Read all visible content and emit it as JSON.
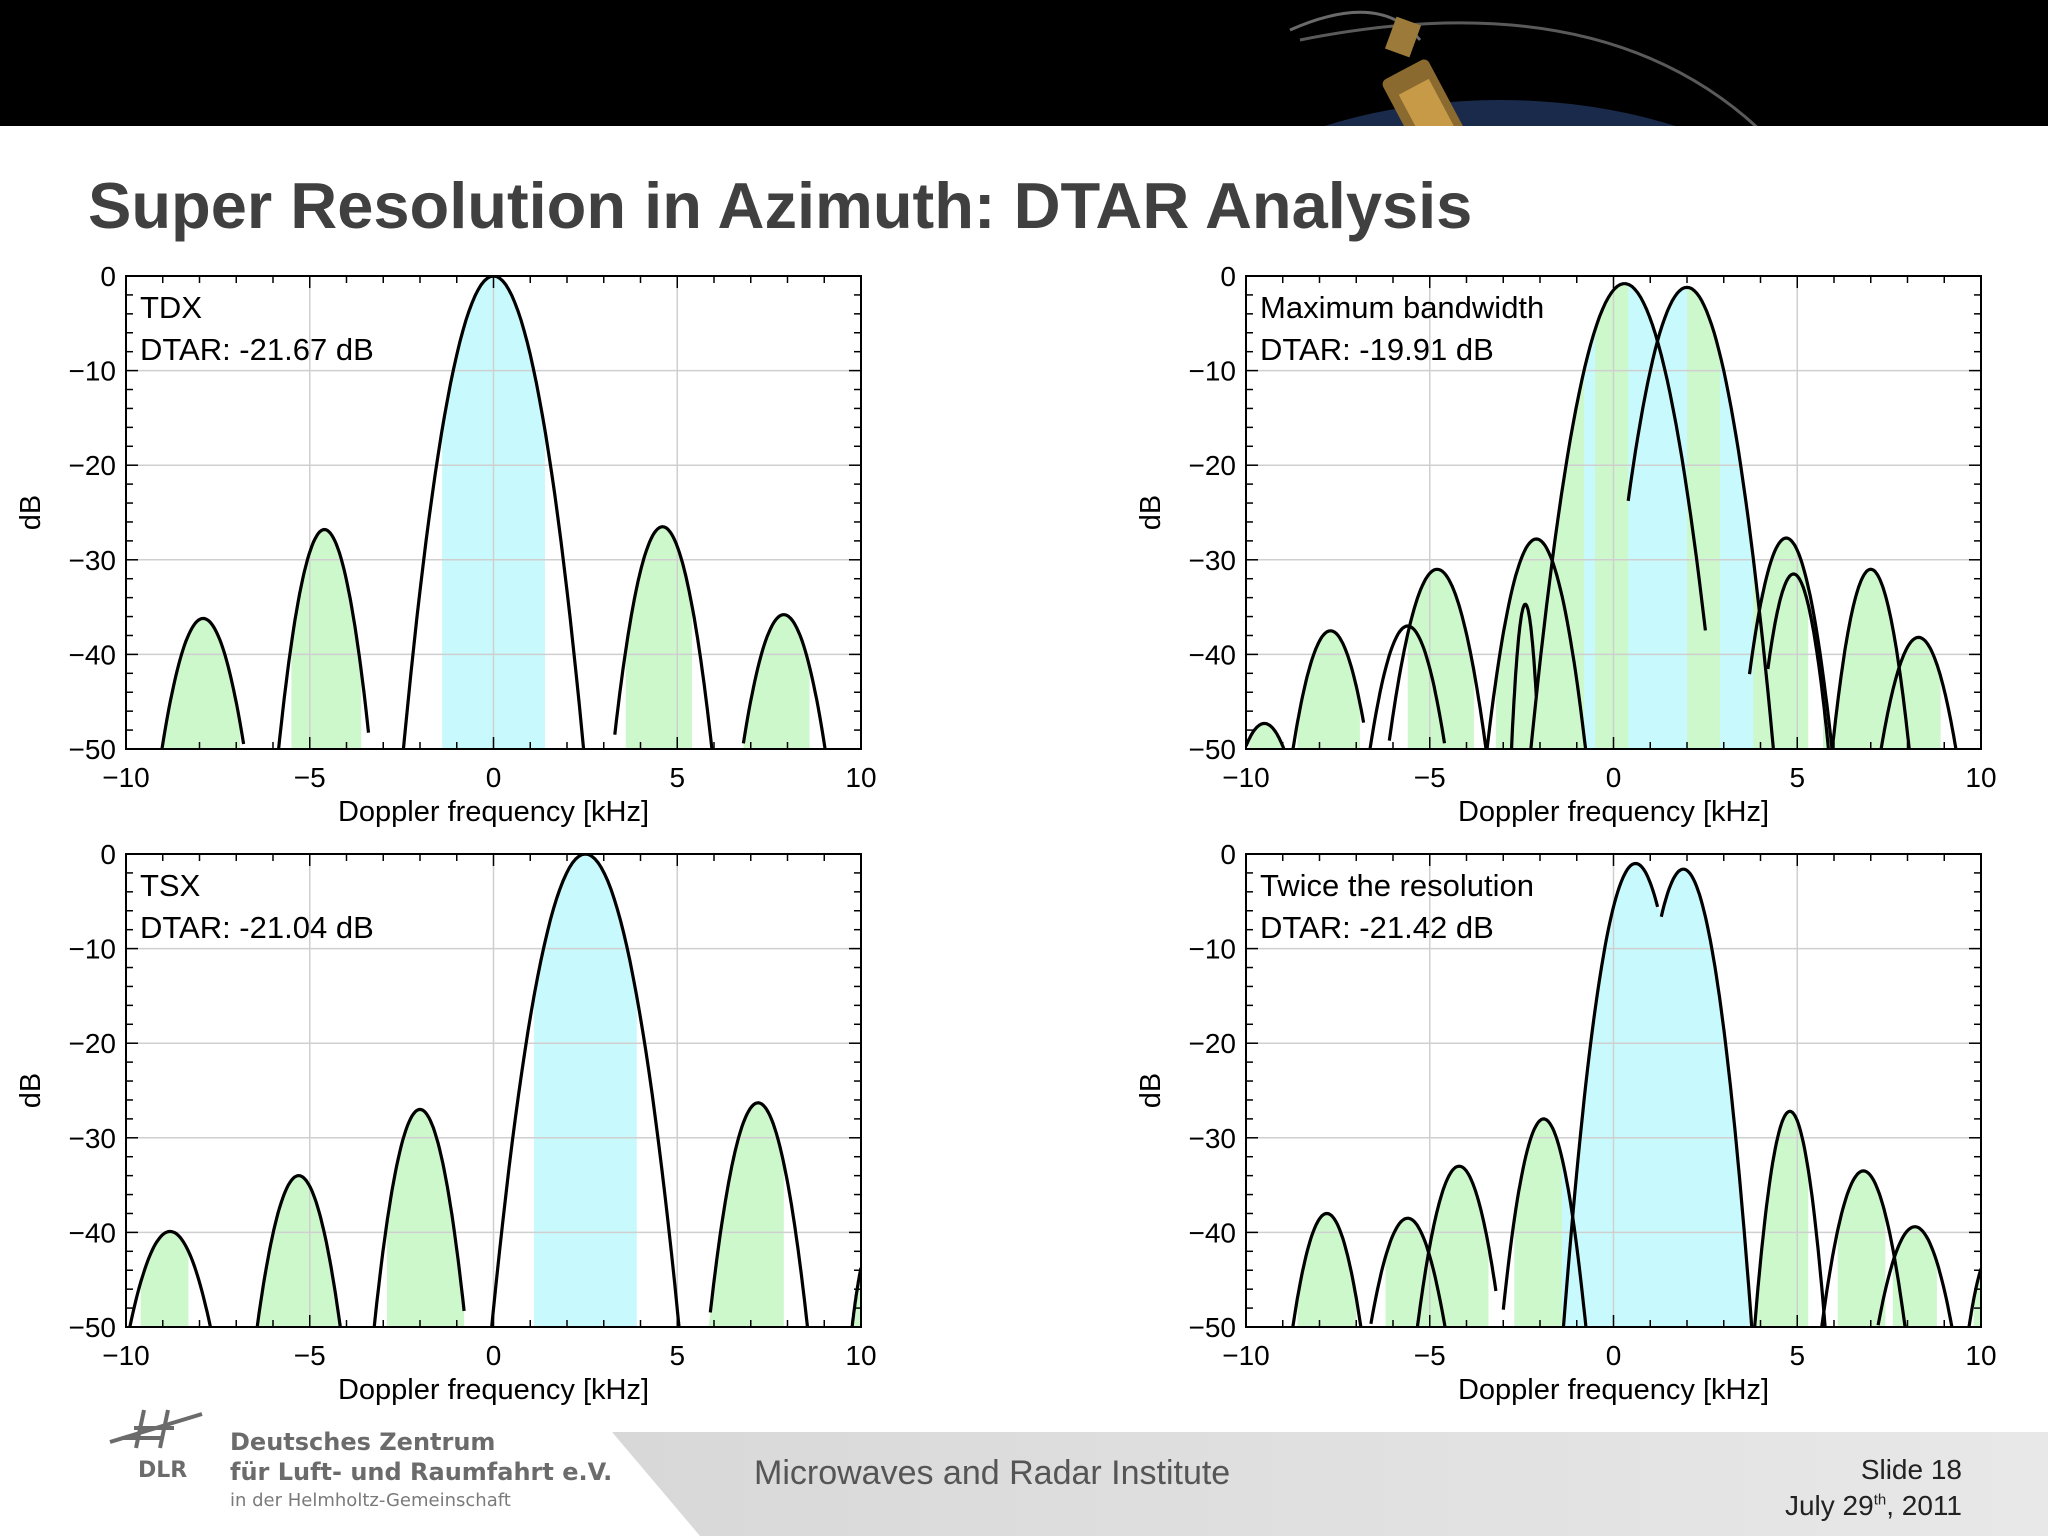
{
  "slide": {
    "title": "Super Resolution in Azimuth: DTAR Analysis",
    "institute": "Microwaves and Radar Institute",
    "slide_number": "Slide 18",
    "date_prefix": "July 29",
    "date_sup": "th",
    "date_suffix": ", 2011",
    "logo": {
      "word": "DLR",
      "line1": "Deutsches Zentrum",
      "line2": "für Luft- und Raumfahrt e.V.",
      "line3": "in der Helmholtz-Gemeinschaft"
    }
  },
  "colors": {
    "blue_fill": "#c8fafd",
    "green_fill": "#ccf8cc",
    "curve": "#000000",
    "grid": "#cfcfcf",
    "banner": "#000000",
    "footer": "#dcdcdc"
  },
  "chart_data": [
    {
      "type": "line",
      "annotation": [
        "TDX",
        "DTAR: -21.67 dB"
      ],
      "xlabel": "Doppler frequency [kHz]",
      "ylabel": "dB",
      "xlim": [
        -10,
        10
      ],
      "ylim": [
        -50,
        0
      ],
      "xticks": [
        -10,
        -5,
        0,
        5,
        10
      ],
      "yticks": [
        0,
        -10,
        -20,
        -30,
        -40,
        -50
      ],
      "grid": true,
      "blue_bands": [
        [
          -1.4,
          1.4
        ]
      ],
      "green_bands": [
        [
          -9.0,
          -6.9
        ],
        [
          -5.5,
          -3.6
        ],
        [
          -2.8,
          -2.6
        ],
        [
          2.6,
          2.8
        ],
        [
          3.6,
          5.4
        ],
        [
          6.8,
          8.6
        ]
      ],
      "curves": [
        {
          "peak_x": 0.0,
          "peak_y": 0.0,
          "x_start": -2.5,
          "x_end": 2.5
        },
        {
          "peak_x": -4.6,
          "peak_y": -26.8,
          "x_start": -5.9,
          "x_end": -3.4
        },
        {
          "peak_x": 4.6,
          "peak_y": -26.5,
          "x_start": 3.3,
          "x_end": 6.0
        },
        {
          "peak_x": -7.9,
          "peak_y": -36.2,
          "x_start": -9.1,
          "x_end": -6.8
        },
        {
          "peak_x": 7.9,
          "peak_y": -35.8,
          "x_start": 6.8,
          "x_end": 9.1
        }
      ]
    },
    {
      "type": "line",
      "annotation": [
        "Maximum bandwidth",
        "DTAR: -19.91 dB"
      ],
      "xlabel": "Doppler frequency [kHz]",
      "ylabel": "dB",
      "xlim": [
        -10,
        10
      ],
      "ylim": [
        -50,
        0
      ],
      "xticks": [
        -10,
        -5,
        0,
        5,
        10
      ],
      "yticks": [
        0,
        -10,
        -20,
        -30,
        -40,
        -50
      ],
      "grid": true,
      "blue_bands": [
        [
          -2.0,
          4.4
        ]
      ],
      "green_bands": [
        [
          -9.9,
          -8.9
        ],
        [
          -8.6,
          -6.9
        ],
        [
          -5.6,
          -3.8
        ],
        [
          -3.2,
          -0.8
        ],
        [
          -0.5,
          0.4
        ],
        [
          2.0,
          2.9
        ],
        [
          3.8,
          5.3
        ],
        [
          5.7,
          7.5
        ],
        [
          7.4,
          8.9
        ],
        [
          9.7,
          10
        ]
      ],
      "curves": [
        {
          "peak_x": 0.3,
          "peak_y": -0.8,
          "x_start": -2.3,
          "x_end": 2.5
        },
        {
          "peak_x": 2.0,
          "peak_y": -1.2,
          "x_start": 0.4,
          "x_end": 4.4
        },
        {
          "peak_x": -7.7,
          "peak_y": -37.5,
          "x_start": -8.8,
          "x_end": -6.8
        },
        {
          "peak_x": -4.8,
          "peak_y": -31.0,
          "x_start": -6.1,
          "x_end": -3.4
        },
        {
          "peak_x": -2.1,
          "peak_y": -27.8,
          "x_start": -3.5,
          "x_end": -0.7
        },
        {
          "peak_x": -5.6,
          "peak_y": -37.0,
          "x_start": -6.7,
          "x_end": -4.6
        },
        {
          "peak_x": -2.4,
          "peak_y": -34.7,
          "x_start": -2.8,
          "x_end": -2.1
        },
        {
          "peak_x": 4.7,
          "peak_y": -27.7,
          "x_start": 3.7,
          "x_end": 6.0
        },
        {
          "peak_x": 7.0,
          "peak_y": -31.0,
          "x_start": 5.9,
          "x_end": 8.1
        },
        {
          "peak_x": 8.3,
          "peak_y": -38.2,
          "x_start": 7.2,
          "x_end": 9.4
        },
        {
          "peak_x": -9.5,
          "peak_y": -47.3,
          "x_start": -10.0,
          "x_end": -8.8
        },
        {
          "peak_x": 4.9,
          "peak_y": -31.5,
          "x_start": 4.2,
          "x_end": 5.9
        }
      ]
    },
    {
      "type": "line",
      "annotation": [
        "TSX",
        "DTAR: -21.04 dB"
      ],
      "xlabel": "Doppler frequency [kHz]",
      "ylabel": "dB",
      "xlim": [
        -10,
        10
      ],
      "ylim": [
        -50,
        0
      ],
      "xticks": [
        -10,
        -5,
        0,
        5,
        10
      ],
      "yticks": [
        0,
        -10,
        -20,
        -30,
        -40,
        -50
      ],
      "grid": true,
      "blue_bands": [
        [
          1.1,
          3.9
        ]
      ],
      "green_bands": [
        [
          -9.6,
          -8.3
        ],
        [
          -6.4,
          -4.0
        ],
        [
          -2.9,
          -0.8
        ],
        [
          -0.4,
          -0.2
        ],
        [
          5.1,
          5.6
        ],
        [
          5.8,
          7.9
        ],
        [
          9.8,
          10
        ]
      ],
      "curves": [
        {
          "peak_x": 2.5,
          "peak_y": 0.0,
          "x_start": -0.1,
          "x_end": 5.1
        },
        {
          "peak_x": -2.0,
          "peak_y": -27.0,
          "x_start": -3.3,
          "x_end": -0.8
        },
        {
          "peak_x": -5.3,
          "peak_y": -34.0,
          "x_start": -6.5,
          "x_end": -4.1
        },
        {
          "peak_x": -8.8,
          "peak_y": -39.9,
          "x_start": -9.9,
          "x_end": -7.6
        },
        {
          "peak_x": 7.2,
          "peak_y": -26.3,
          "x_start": 5.9,
          "x_end": 8.6
        },
        {
          "peak_x": 10.3,
          "peak_y": -41.0,
          "x_start": 9.7,
          "x_end": 10.0
        }
      ]
    },
    {
      "type": "line",
      "annotation": [
        "Twice the resolution",
        "DTAR: -21.42 dB"
      ],
      "xlabel": "Doppler frequency [kHz]",
      "ylabel": "dB",
      "xlim": [
        -10,
        10
      ],
      "ylim": [
        -50,
        0
      ],
      "xticks": [
        -10,
        -5,
        0,
        5,
        10
      ],
      "yticks": [
        0,
        -10,
        -20,
        -30,
        -40,
        -50
      ],
      "grid": true,
      "blue_bands": [
        [
          -1.4,
          3.8
        ]
      ],
      "green_bands": [
        [
          -8.6,
          -7.0
        ],
        [
          -6.2,
          -4.6
        ],
        [
          -4.7,
          -3.4
        ],
        [
          -2.7,
          -1.4
        ],
        [
          3.9,
          5.3
        ],
        [
          6.1,
          7.4
        ],
        [
          7.6,
          8.8
        ],
        [
          9.8,
          10
        ]
      ],
      "curves": [
        {
          "peak_x": 0.6,
          "peak_y": -1.0,
          "x_start": -1.4,
          "x_end": 1.2
        },
        {
          "peak_x": 1.9,
          "peak_y": -1.6,
          "x_start": 1.3,
          "x_end": 3.8
        },
        {
          "peak_x": -7.8,
          "peak_y": -38.0,
          "x_start": -8.8,
          "x_end": -6.8
        },
        {
          "peak_x": -5.6,
          "peak_y": -38.5,
          "x_start": -6.6,
          "x_end": -4.5
        },
        {
          "peak_x": -4.2,
          "peak_y": -33.0,
          "x_start": -5.4,
          "x_end": -3.2
        },
        {
          "peak_x": -1.9,
          "peak_y": -28.0,
          "x_start": -3.0,
          "x_end": -0.7
        },
        {
          "peak_x": 4.8,
          "peak_y": -27.2,
          "x_start": 3.8,
          "x_end": 5.8
        },
        {
          "peak_x": 6.8,
          "peak_y": -33.5,
          "x_start": 5.6,
          "x_end": 8.0
        },
        {
          "peak_x": 8.2,
          "peak_y": -39.4,
          "x_start": 7.2,
          "x_end": 9.3
        },
        {
          "peak_x": 10.3,
          "peak_y": -42.0,
          "x_start": 9.6,
          "x_end": 10.0
        }
      ]
    }
  ]
}
